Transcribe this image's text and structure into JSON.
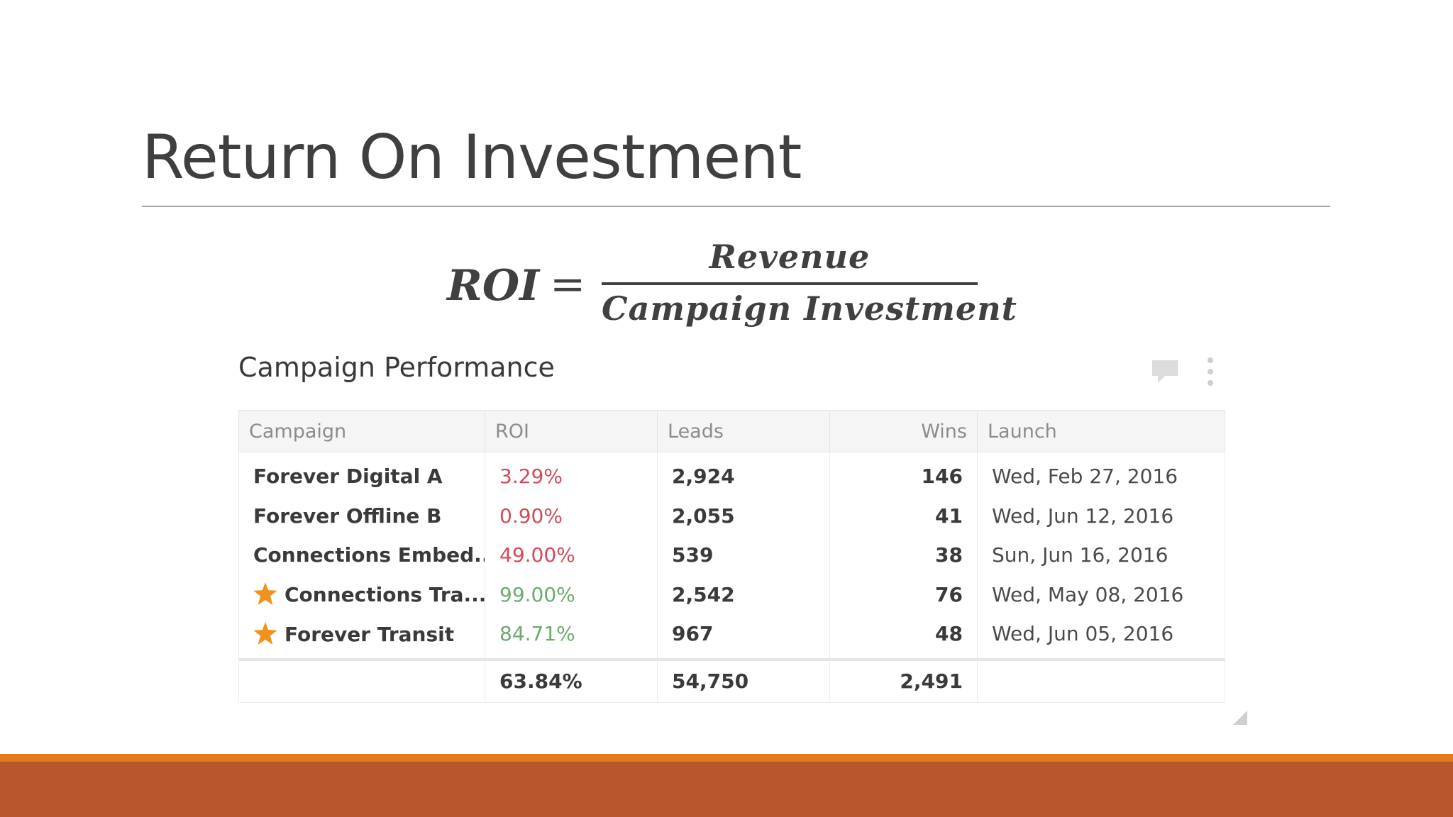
{
  "slide": {
    "title": "Return On Investment"
  },
  "formula": {
    "lhs": "ROI",
    "equals": "=",
    "numerator": "Revenue",
    "denominator": "Campaign Investment"
  },
  "widget": {
    "title": "Campaign Performance",
    "icons": {
      "comment": "comment-icon",
      "more": "more-vertical-icon",
      "resize": "resize-handle-icon",
      "favorite": "star-icon"
    },
    "colors": {
      "roi_negative": "#d34a5a",
      "roi_positive": "#6aab6e",
      "star": "#f0921e"
    },
    "columns": [
      "Campaign",
      "ROI",
      "Leads",
      "Wins",
      "Launch"
    ],
    "rows": [
      {
        "campaign": "Forever Digital A",
        "starred": false,
        "roi": "3.29%",
        "roi_status": "red",
        "leads": "2,924",
        "wins": "146",
        "launch": "Wed, Feb 27, 2016"
      },
      {
        "campaign": "Forever Offline B",
        "starred": false,
        "roi": "0.90%",
        "roi_status": "red",
        "leads": "2,055",
        "wins": "41",
        "launch": "Wed, Jun 12, 2016"
      },
      {
        "campaign": "Connections Embed..",
        "starred": false,
        "roi": "49.00%",
        "roi_status": "red",
        "leads": "539",
        "wins": "38",
        "launch": "Sun, Jun 16, 2016"
      },
      {
        "campaign": "Connections Tra...",
        "starred": true,
        "roi": "99.00%",
        "roi_status": "green",
        "leads": "2,542",
        "wins": "76",
        "launch": "Wed, May 08, 2016"
      },
      {
        "campaign": "Forever Transit",
        "starred": true,
        "roi": "84.71%",
        "roi_status": "green",
        "leads": "967",
        "wins": "48",
        "launch": "Wed, Jun 05, 2016"
      }
    ],
    "totals": {
      "campaign": "",
      "roi": "63.84%",
      "leads": "54,750",
      "wins": "2,491",
      "launch": ""
    }
  },
  "theme": {
    "footer_accent": "#e07a1f",
    "footer_bar": "#b8572b"
  }
}
